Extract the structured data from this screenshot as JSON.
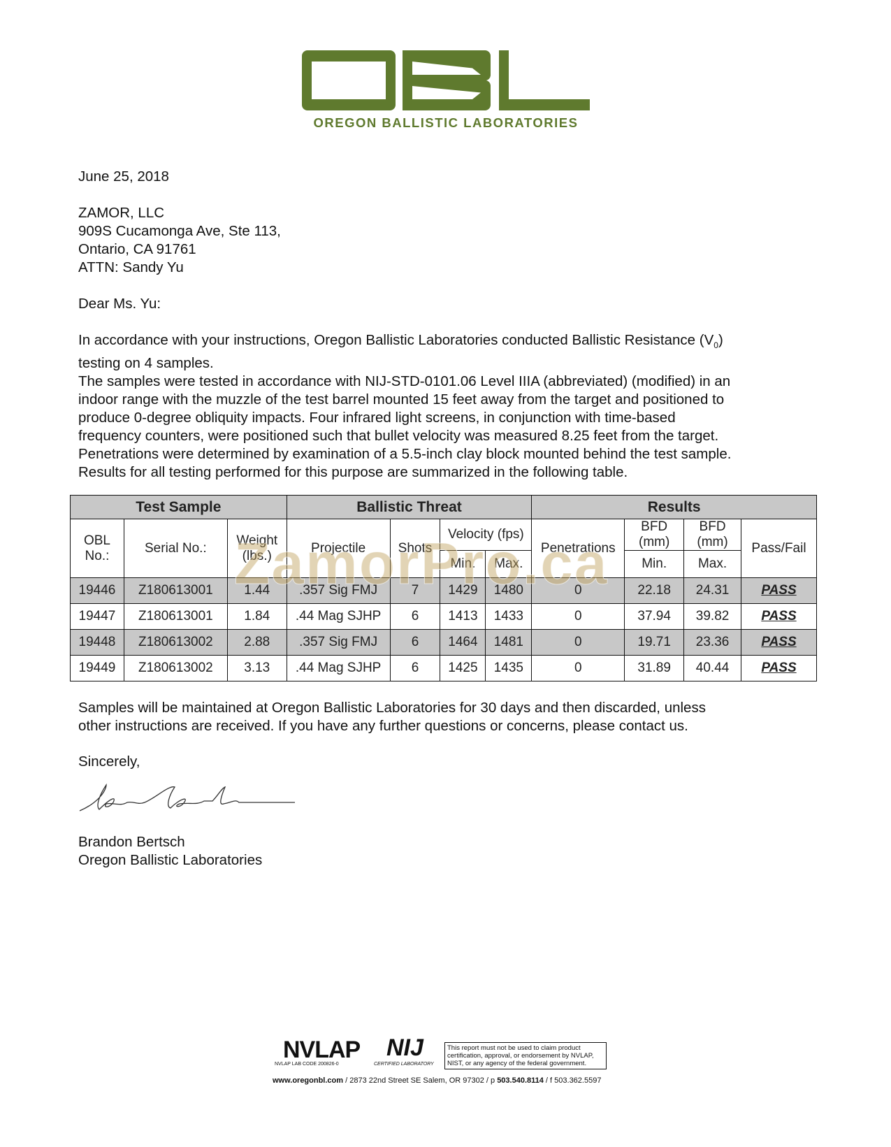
{
  "letterhead": {
    "logo_text": "OBL",
    "org_name": "OREGON BALLISTIC LABORATORIES",
    "brand_color": "#5f7a2e"
  },
  "date": "June 25, 2018",
  "address": [
    "ZAMOR, LLC",
    "909S Cucamonga Ave, Ste 113,",
    "Ontario, CA 91761",
    "ATTN: Sandy Yu"
  ],
  "salutation": "Dear Ms. Yu:",
  "body": {
    "p1_line1_before": "In accordance with your instructions, Oregon Ballistic Laboratories conducted Ballistic Resistance (V",
    "p1_subscript": "0",
    "p1_line1_after": ")",
    "p1_line2": "testing on 4 samples.",
    "p2_lines": [
      "The samples were tested in accordance with NIJ-STD-0101.06 Level IIIA (abbreviated) (modified) in an",
      "indoor range with the muzzle of the test barrel mounted 15 feet away from the target and positioned to",
      "produce 0-degree obliquity impacts. Four infrared light screens, in conjunction with time-based",
      "frequency counters, were positioned such that bullet velocity was measured 8.25 feet from the target.",
      "Penetrations were determined by examination of a 5.5-inch clay block mounted behind the test sample.",
      "Results for all testing performed for this purpose are summarized in the following table."
    ]
  },
  "table": {
    "groups": [
      "Test Sample",
      "Ballistic Threat",
      "Results"
    ],
    "headers": {
      "obl_no": "OBL No.:",
      "serial": "Serial No.:",
      "weight": "Weight (lbs.)",
      "projectile": "Projectile",
      "shots": "Shots",
      "velocity": "Velocity (fps)",
      "vel_min": "Min.",
      "vel_max": "Max.",
      "penetrations": "Penetrations",
      "bfd1": "BFD (mm)",
      "bfd2": "BFD (mm)",
      "bfd_min": "Min.",
      "bfd_max": "Max.",
      "pass_fail": "Pass/Fail"
    },
    "rows": [
      [
        "19446",
        "Z180613001",
        "1.44",
        ".357 Sig FMJ",
        "7",
        "1429",
        "1480",
        "0",
        "22.18",
        "24.31",
        "PASS"
      ],
      [
        "19447",
        "Z180613001",
        "1.84",
        ".44 Mag SJHP",
        "6",
        "1413",
        "1433",
        "0",
        "37.94",
        "39.82",
        "PASS"
      ],
      [
        "19448",
        "Z180613002",
        "2.88",
        ".357 Sig FMJ",
        "6",
        "1464",
        "1481",
        "0",
        "19.71",
        "23.36",
        "PASS"
      ],
      [
        "19449",
        "Z180613002",
        "3.13",
        ".44 Mag SJHP",
        "6",
        "1425",
        "1435",
        "0",
        "31.89",
        "40.44",
        "PASS"
      ]
    ]
  },
  "watermark": "ZamorPro.ca",
  "closing_lines": [
    "Samples will be maintained at Oregon Ballistic Laboratories for 30 days and then discarded, unless",
    "other instructions are received. If you have any further questions or concerns, please contact us."
  ],
  "signoff": "Sincerely,",
  "signer_name": "Brandon Bertsch",
  "signer_org": "Oregon Ballistic Laboratories",
  "footer": {
    "nvlap_logo": "NVLAP",
    "nvlap_code": "NVLAP LAB CODE 200826-0",
    "nij_logo": "NIJ",
    "nij_caption": "CERTIFIED LABORATORY",
    "disclaimer": "This report must not be used to claim product certification, approval, or endorsement by NVLAP, NIST, or any agency of the federal government.",
    "website": "www.oregonbl.com",
    "address": " / 2873 22nd Street SE Salem, OR 97302 / p ",
    "phone": "503.540.8114",
    "fax_sep": " / f ",
    "fax": "503.362.5597"
  }
}
